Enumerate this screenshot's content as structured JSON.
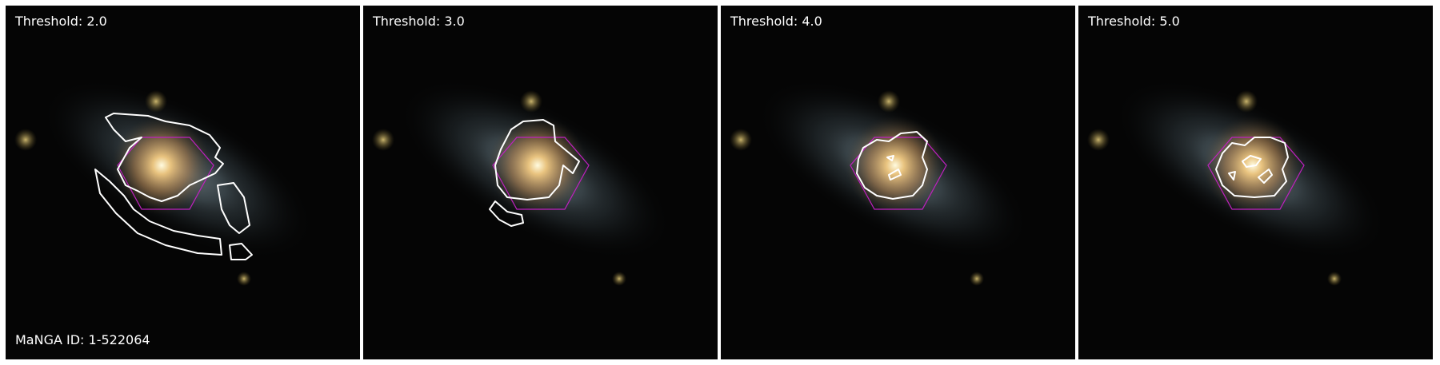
{
  "figure": {
    "manga_id_label": "MaNGA ID: 1-522064",
    "panels": [
      {
        "threshold_label": "Threshold: 2.0"
      },
      {
        "threshold_label": "Threshold: 3.0"
      },
      {
        "threshold_label": "Threshold: 4.0"
      },
      {
        "threshold_label": "Threshold: 5.0"
      }
    ]
  },
  "colors": {
    "background": "#050505",
    "contour": "#ffffff",
    "hexagon": "#c020c0",
    "galaxy_core": "#fff4c8",
    "galaxy_bulge": "#d8a060",
    "galaxy_disk": "#7a8a9a",
    "foreground_star": "#c8b060"
  }
}
